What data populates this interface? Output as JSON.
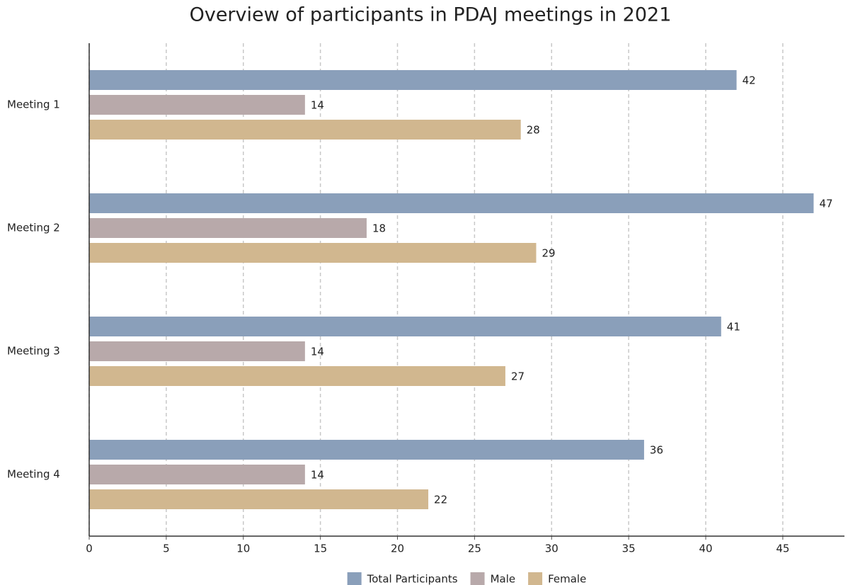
{
  "chart_data": {
    "type": "bar",
    "orientation": "horizontal",
    "title": "Overview of participants in PDAJ meetings in 2021",
    "categories": [
      "Meeting 1",
      "Meeting 2",
      "Meeting 3",
      "Meeting 4"
    ],
    "series": [
      {
        "name": "Total Participants",
        "color": "#8a9fba",
        "values": [
          42,
          47,
          41,
          36
        ]
      },
      {
        "name": "Male",
        "color": "#b8a9aa",
        "values": [
          14,
          18,
          14,
          14
        ]
      },
      {
        "name": "Female",
        "color": "#d1b78f",
        "values": [
          28,
          29,
          27,
          22
        ]
      }
    ],
    "xlim": [
      0,
      49
    ],
    "xticks": [
      0,
      5,
      10,
      15,
      20,
      25,
      30,
      35,
      40,
      45
    ],
    "grid": true,
    "legend": "bottom"
  }
}
